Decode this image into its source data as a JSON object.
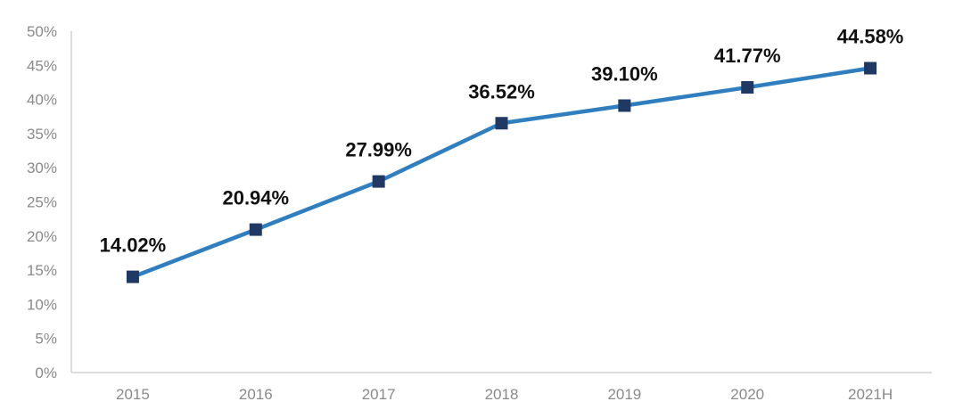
{
  "colors": {
    "line": "#2e7ec0",
    "marker": "#1f3864",
    "axis": "#d0d0d0",
    "tick_text": "#8a8a8a",
    "label_text": "#111111"
  },
  "chart_data": {
    "type": "line",
    "title": "",
    "xlabel": "",
    "ylabel": "",
    "categories": [
      "2015",
      "2016",
      "2017",
      "2018",
      "2019",
      "2020",
      "2021H"
    ],
    "series": [
      {
        "values": [
          14.02,
          20.94,
          27.99,
          36.52,
          39.1,
          41.77,
          44.58
        ],
        "data_labels": [
          "14.02%",
          "20.94%",
          "27.99%",
          "36.52%",
          "39.10%",
          "41.77%",
          "44.58%"
        ]
      }
    ],
    "ylim": [
      0,
      50
    ],
    "y_ticks": [
      0,
      5,
      10,
      15,
      20,
      25,
      30,
      35,
      40,
      45,
      50
    ],
    "y_tick_labels": [
      "0%",
      "5%",
      "10%",
      "15%",
      "20%",
      "25%",
      "30%",
      "35%",
      "40%",
      "45%",
      "50%"
    ],
    "grid": false,
    "legend": "none",
    "marker": "square"
  }
}
